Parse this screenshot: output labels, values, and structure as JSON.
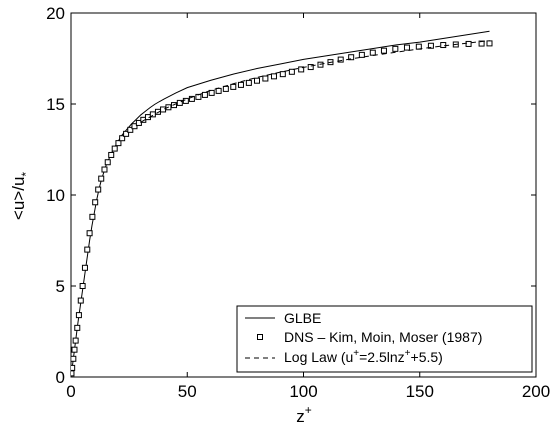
{
  "chart_data": {
    "type": "line",
    "xlabel": "z",
    "xlabel_sup": "+",
    "ylabel": "<u>/u",
    "ylabel_sub": "*",
    "xlim": [
      0,
      200
    ],
    "ylim": [
      0,
      20
    ],
    "xticks": [
      0,
      50,
      100,
      150,
      200
    ],
    "xtick_labels": [
      "0",
      "50",
      "100",
      "150",
      "200"
    ],
    "yticks": [
      0,
      5,
      10,
      15,
      20
    ],
    "ytick_labels": [
      "0",
      "5",
      "10",
      "15",
      "20"
    ],
    "grid": false,
    "legend_position": "bottom-right",
    "series": [
      {
        "name": "GLBE",
        "style": "solid",
        "color": "#000000",
        "x": [
          0,
          1,
          2,
          3,
          4,
          5,
          6,
          7,
          8,
          9,
          10,
          11,
          12,
          13,
          14,
          15,
          16,
          18,
          20,
          22,
          24,
          26,
          28,
          30,
          32,
          34,
          36,
          38,
          40,
          45,
          50,
          55,
          60,
          70,
          80,
          90,
          100,
          110,
          120,
          130,
          140,
          150,
          160,
          170,
          180
        ],
        "y": [
          0,
          1.0,
          2.0,
          3.0,
          3.9,
          4.8,
          5.7,
          6.6,
          7.5,
          8.3,
          9.0,
          9.7,
          10.3,
          10.8,
          11.2,
          11.6,
          11.9,
          12.45,
          12.9,
          13.3,
          13.6,
          13.9,
          14.15,
          14.4,
          14.6,
          14.8,
          14.98,
          15.13,
          15.27,
          15.6,
          15.9,
          16.1,
          16.3,
          16.65,
          16.95,
          17.2,
          17.45,
          17.65,
          17.85,
          18.05,
          18.25,
          18.4,
          18.6,
          18.8,
          19.0
        ]
      },
      {
        "name": "DNS – Kim, Moin, Moser (1987)",
        "style": "square-markers",
        "color": "#000000",
        "x": [
          0.2,
          0.5,
          1.0,
          1.5,
          2.0,
          2.7,
          3.4,
          4.2,
          5.0,
          6.0,
          7.0,
          8.0,
          9.2,
          10.4,
          11.7,
          13.0,
          14.4,
          15.8,
          17.3,
          18.8,
          20.4,
          22.0,
          23.7,
          25.5,
          27.3,
          29.2,
          31.1,
          33.1,
          35.2,
          37.4,
          39.6,
          41.9,
          44.3,
          46.8,
          49.4,
          52.0,
          54.8,
          57.6,
          60.5,
          63.5,
          66.6,
          69.8,
          73.1,
          76.5,
          80.0,
          83.6,
          87.3,
          91.1,
          95.0,
          99.0,
          103.1,
          107.3,
          111.6,
          116.0,
          120.5,
          125.1,
          129.8,
          134.6,
          139.5,
          144.5,
          149.6,
          154.8,
          160.1,
          165.5,
          171.0,
          176.6,
          180.0
        ],
        "y": [
          0.2,
          0.5,
          1.0,
          1.5,
          2.0,
          2.7,
          3.4,
          4.2,
          5.0,
          6.0,
          7.0,
          7.9,
          8.8,
          9.6,
          10.3,
          10.9,
          11.4,
          11.8,
          12.2,
          12.55,
          12.85,
          13.12,
          13.36,
          13.58,
          13.78,
          13.96,
          14.13,
          14.28,
          14.43,
          14.57,
          14.7,
          14.82,
          14.94,
          15.06,
          15.17,
          15.28,
          15.39,
          15.5,
          15.61,
          15.72,
          15.83,
          15.94,
          16.05,
          16.16,
          16.28,
          16.4,
          16.52,
          16.64,
          16.77,
          16.9,
          17.03,
          17.16,
          17.3,
          17.44,
          17.57,
          17.7,
          17.82,
          17.93,
          18.03,
          18.1,
          18.15,
          18.2,
          18.24,
          18.27,
          18.3,
          18.32,
          18.33
        ]
      },
      {
        "name": "Log Law (u",
        "name_sup1": "+",
        "name_mid": "=2.5lnz",
        "name_sup2": "+",
        "name_end": "+5.5)",
        "style": "dashed",
        "color": "#000000",
        "x": [
          30,
          40,
          50,
          60,
          70,
          80,
          90,
          100,
          110,
          120,
          130,
          140,
          150,
          160,
          170,
          180
        ],
        "y": [
          14.0,
          14.72,
          15.28,
          15.74,
          16.12,
          16.46,
          16.75,
          17.01,
          17.25,
          17.47,
          17.67,
          17.85,
          18.03,
          18.19,
          18.34,
          18.48
        ]
      }
    ]
  }
}
